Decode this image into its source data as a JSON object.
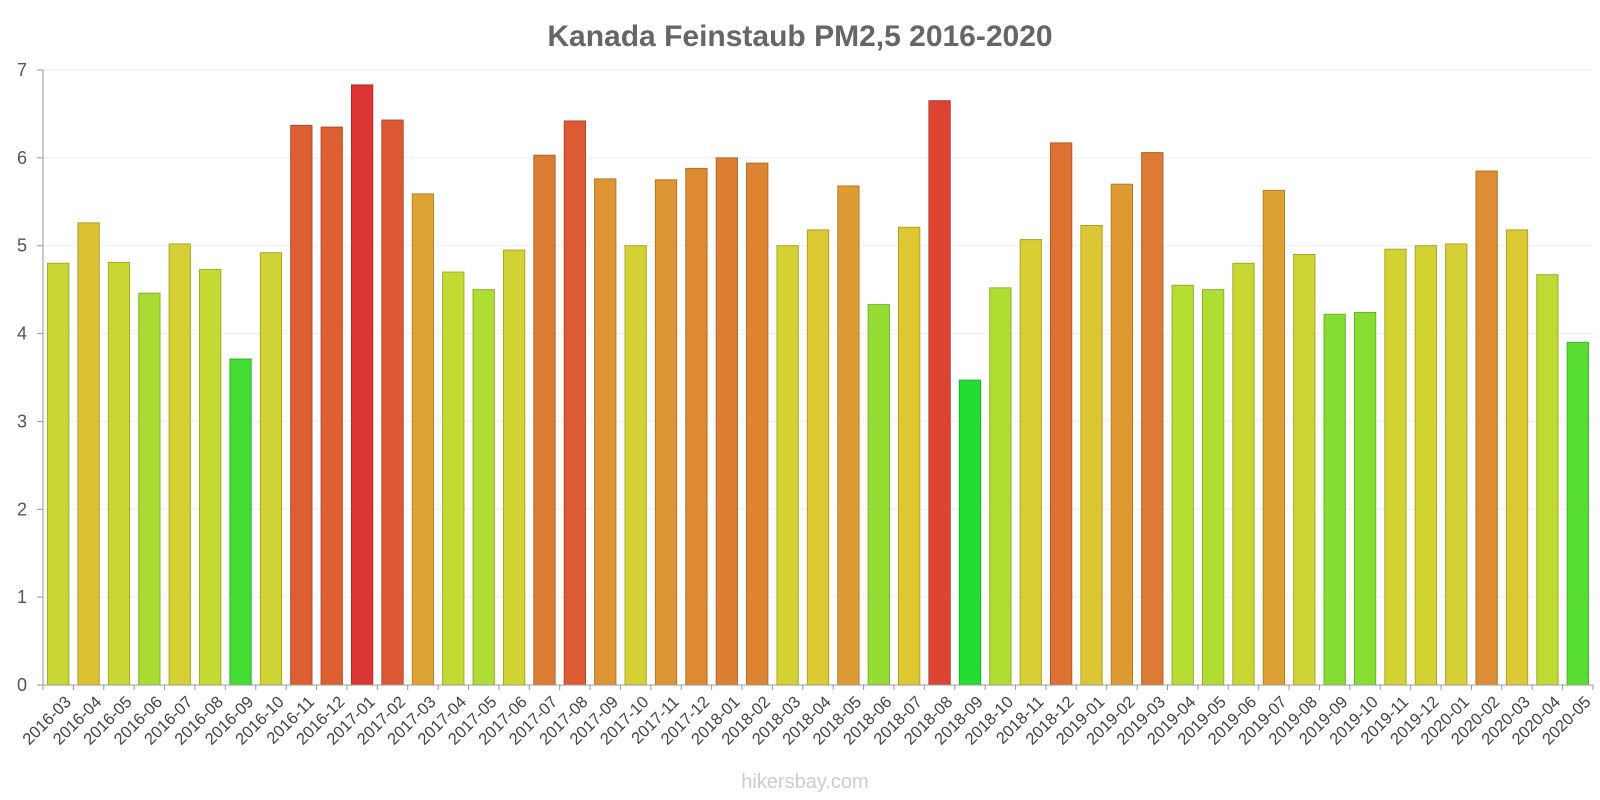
{
  "chart_data": {
    "type": "bar",
    "title": "Kanada Feinstaub PM2,5 2016-2020",
    "xlabel": "",
    "ylabel": "",
    "ylim": [
      0,
      7
    ],
    "y_ticks": [
      "0",
      "1",
      "2",
      "3",
      "4",
      "5",
      "6",
      "7"
    ],
    "grid": true,
    "legend": "none",
    "categories": [
      "2016-03",
      "2016-04",
      "2016-05",
      "2016-06",
      "2016-07",
      "2016-08",
      "2016-09",
      "2016-10",
      "2016-11",
      "2016-12",
      "2017-01",
      "2017-02",
      "2017-03",
      "2017-04",
      "2017-05",
      "2017-06",
      "2017-07",
      "2017-08",
      "2017-09",
      "2017-10",
      "2017-11",
      "2017-12",
      "2018-01",
      "2018-02",
      "2018-03",
      "2018-04",
      "2018-05",
      "2018-06",
      "2018-07",
      "2018-08",
      "2018-09",
      "2018-10",
      "2018-11",
      "2018-12",
      "2019-01",
      "2019-02",
      "2019-03",
      "2019-04",
      "2019-05",
      "2019-06",
      "2019-07",
      "2019-08",
      "2019-09",
      "2019-10",
      "2019-11",
      "2019-12",
      "2020-01",
      "2020-02",
      "2020-03",
      "2020-04",
      "2020-05"
    ],
    "values": [
      4.8,
      5.26,
      4.81,
      4.46,
      5.02,
      4.73,
      3.71,
      4.92,
      6.37,
      6.35,
      6.83,
      6.43,
      5.59,
      4.7,
      4.5,
      4.95,
      6.03,
      6.42,
      5.76,
      5.0,
      5.75,
      5.88,
      6.0,
      5.94,
      5.0,
      5.18,
      5.68,
      4.33,
      5.21,
      6.65,
      3.47,
      4.52,
      5.07,
      6.17,
      5.23,
      5.7,
      6.06,
      4.55,
      4.5,
      4.8,
      5.63,
      4.9,
      4.22,
      4.24,
      4.96,
      5.0,
      5.02,
      5.85,
      5.18,
      4.67,
      3.9
    ],
    "colors": {
      "scale_stops": [
        "#22dd33",
        "#66dd33",
        "#bbdd33",
        "#ddcc33",
        "#dd9933",
        "#dd6633",
        "#dd3333"
      ]
    },
    "watermark": "hikersbay.com"
  }
}
